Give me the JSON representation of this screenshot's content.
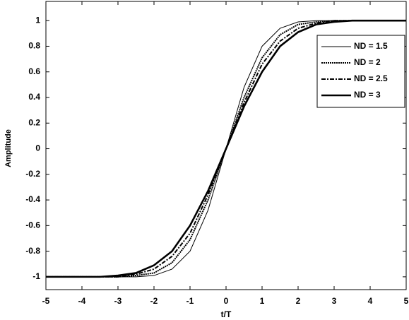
{
  "chart_data": {
    "type": "line",
    "xlabel": "t/T",
    "ylabel": "Amplitude",
    "x": [
      -5,
      -4.5,
      -4,
      -3.5,
      -3,
      -2.5,
      -2,
      -1.5,
      -1,
      -0.5,
      0,
      0.5,
      1,
      1.5,
      2,
      2.5,
      3,
      3.5,
      4,
      4.5,
      5
    ],
    "series": [
      {
        "name": "ND = 1.5",
        "color": "#000000",
        "width": 1,
        "dash": "none",
        "values": [
          -1,
          -1,
          -1,
          -1,
          -1,
          -1,
          -0.99,
          -0.94,
          -0.8,
          -0.48,
          0,
          0.48,
          0.8,
          0.94,
          0.99,
          1,
          1,
          1,
          1,
          1,
          1
        ]
      },
      {
        "name": "ND = 2",
        "color": "#000000",
        "width": 2,
        "dash": "2 1",
        "values": [
          -1,
          -1,
          -1,
          -1,
          -1,
          -0.99,
          -0.97,
          -0.89,
          -0.71,
          -0.4,
          0,
          0.4,
          0.71,
          0.89,
          0.97,
          0.99,
          1,
          1,
          1,
          1,
          1
        ]
      },
      {
        "name": "ND = 2.5",
        "color": "#000000",
        "width": 2,
        "dash": "6 2 2 2",
        "values": [
          -1,
          -1,
          -1,
          -1,
          -1,
          -0.98,
          -0.94,
          -0.84,
          -0.66,
          -0.36,
          0,
          0.36,
          0.66,
          0.84,
          0.94,
          0.98,
          1,
          1,
          1,
          1,
          1
        ]
      },
      {
        "name": "ND = 3",
        "color": "#000000",
        "width": 2.6,
        "dash": "none",
        "values": [
          -1,
          -1,
          -1,
          -1,
          -0.99,
          -0.97,
          -0.91,
          -0.8,
          -0.6,
          -0.33,
          0,
          0.33,
          0.6,
          0.8,
          0.91,
          0.97,
          0.99,
          1,
          1,
          1,
          1
        ]
      }
    ],
    "xlim": [
      -5,
      5
    ],
    "xticks": [
      -5,
      -4,
      -3,
      -2,
      -1,
      0,
      1,
      2,
      3,
      4,
      5
    ],
    "ylim": [
      -1.1,
      1.15
    ],
    "yticks": [
      -1,
      -0.8,
      -0.6,
      -0.4,
      -0.2,
      0,
      0.2,
      0.4,
      0.6,
      0.8,
      1
    ],
    "legend": "upper right"
  }
}
